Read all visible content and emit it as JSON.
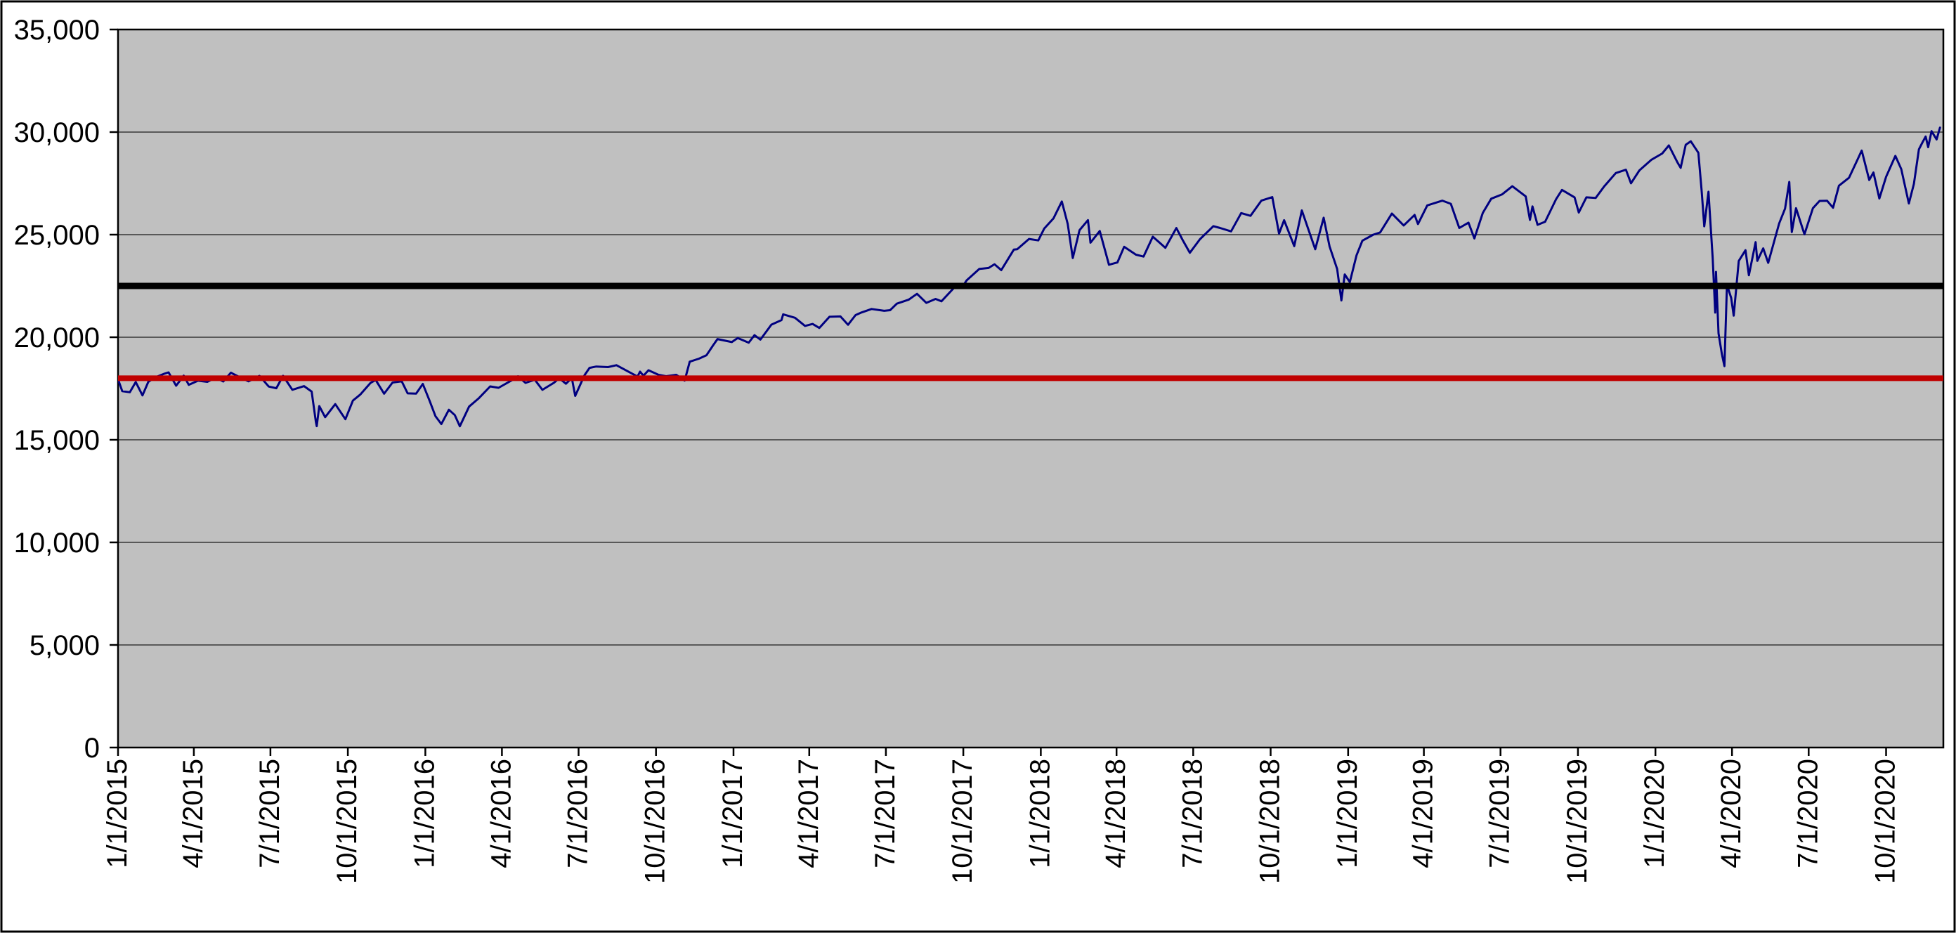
{
  "chart_data": {
    "type": "line",
    "title": "",
    "xlabel": "",
    "ylabel": "",
    "legend": null,
    "grid": "horizontal",
    "colors": {
      "page_background": "#ffffff",
      "plot_background": "#c0c0c0",
      "gridline": "#595959",
      "axis": "#000000",
      "series_line": "#000080",
      "reference_black": "#000000",
      "reference_red": "#c00000"
    },
    "y_axis": {
      "min": 0,
      "max": 35000,
      "tick_interval": 5000,
      "tick_labels": [
        "0",
        "5,000",
        "10,000",
        "15,000",
        "20,000",
        "25,000",
        "30,000",
        "35,000"
      ]
    },
    "x_axis": {
      "range_start": "1/1/2015",
      "range_end": "12/8/2020",
      "tick_labels": [
        "1/1/2015",
        "4/1/2015",
        "7/1/2015",
        "10/1/2015",
        "1/1/2016",
        "4/1/2016",
        "7/1/2016",
        "10/1/2016",
        "1/1/2017",
        "4/1/2017",
        "7/1/2017",
        "10/1/2017",
        "1/1/2018",
        "4/1/2018",
        "7/1/2018",
        "10/1/2018",
        "1/1/2019",
        "4/1/2019",
        "7/1/2019",
        "10/1/2019",
        "1/1/2020",
        "4/1/2020",
        "7/1/2020",
        "10/1/2020"
      ]
    },
    "reference_lines": [
      {
        "name": "reference-line-22500",
        "value": 22500,
        "color": "#000000",
        "width": 9
      },
      {
        "name": "reference-line-18000",
        "value": 18000,
        "color": "#c00000",
        "width": 8
      }
    ],
    "series": [
      {
        "name": "index-price-series",
        "color": "#000080",
        "width": 3,
        "points": [
          [
            "1/2/2015",
            17833
          ],
          [
            "1/6/2015",
            17371
          ],
          [
            "1/15/2015",
            17320
          ],
          [
            "1/22/2015",
            17814
          ],
          [
            "1/30/2015",
            17165
          ],
          [
            "2/6/2015",
            17824
          ],
          [
            "2/13/2015",
            18019
          ],
          [
            "2/25/2015",
            18224
          ],
          [
            "3/2/2015",
            18289
          ],
          [
            "3/11/2015",
            17636
          ],
          [
            "3/20/2015",
            18128
          ],
          [
            "3/26/2015",
            17678
          ],
          [
            "4/6/2015",
            17881
          ],
          [
            "4/17/2015",
            17826
          ],
          [
            "4/27/2015",
            18037
          ],
          [
            "5/6/2015",
            17842
          ],
          [
            "5/15/2015",
            18272
          ],
          [
            "5/26/2015",
            18041
          ],
          [
            "6/5/2015",
            17849
          ],
          [
            "6/18/2015",
            18116
          ],
          [
            "6/29/2015",
            17596
          ],
          [
            "7/8/2015",
            17515
          ],
          [
            "7/16/2015",
            18120
          ],
          [
            "7/27/2015",
            17440
          ],
          [
            "8/10/2015",
            17615
          ],
          [
            "8/19/2015",
            17349
          ],
          [
            "8/24/2015",
            15871
          ],
          [
            "8/25/2015",
            15666
          ],
          [
            "8/28/2015",
            16643
          ],
          [
            "9/4/2015",
            16102
          ],
          [
            "9/16/2015",
            16740
          ],
          [
            "9/28/2015",
            16002
          ],
          [
            "10/7/2015",
            16912
          ],
          [
            "10/16/2015",
            17216
          ],
          [
            "10/28/2015",
            17779
          ],
          [
            "11/3/2015",
            17918
          ],
          [
            "11/13/2015",
            17245
          ],
          [
            "11/23/2015",
            17792
          ],
          [
            "12/4/2015",
            17848
          ],
          [
            "12/11/2015",
            17265
          ],
          [
            "12/21/2015",
            17251
          ],
          [
            "12/29/2015",
            17721
          ],
          [
            "1/6/2016",
            16906
          ],
          [
            "1/13/2016",
            16151
          ],
          [
            "1/20/2016",
            15767
          ],
          [
            "1/29/2016",
            16466
          ],
          [
            "2/5/2016",
            16205
          ],
          [
            "2/11/2016",
            15660
          ],
          [
            "2/22/2016",
            16620
          ],
          [
            "3/4/2016",
            17007
          ],
          [
            "3/18/2016",
            17602
          ],
          [
            "3/28/2016",
            17535
          ],
          [
            "4/13/2016",
            17908
          ],
          [
            "4/20/2016",
            18096
          ],
          [
            "4/29/2016",
            17774
          ],
          [
            "5/10/2016",
            17928
          ],
          [
            "5/19/2016",
            17435
          ],
          [
            "6/2/2016",
            17789
          ],
          [
            "6/8/2016",
            18005
          ],
          [
            "6/16/2016",
            17733
          ],
          [
            "6/23/2016",
            18011
          ],
          [
            "6/27/2016",
            17140
          ],
          [
            "7/8/2016",
            18147
          ],
          [
            "7/14/2016",
            18506
          ],
          [
            "7/22/2016",
            18571
          ],
          [
            "8/5/2016",
            18543
          ],
          [
            "8/15/2016",
            18636
          ],
          [
            "8/26/2016",
            18395
          ],
          [
            "9/9/2016",
            18085
          ],
          [
            "9/12/2016",
            18325
          ],
          [
            "9/16/2016",
            18123
          ],
          [
            "9/22/2016",
            18392
          ],
          [
            "10/4/2016",
            18168
          ],
          [
            "10/13/2016",
            18099
          ],
          [
            "10/25/2016",
            18169
          ],
          [
            "11/4/2016",
            17888
          ],
          [
            "11/10/2016",
            18808
          ],
          [
            "11/21/2016",
            18956
          ],
          [
            "11/30/2016",
            19124
          ],
          [
            "12/8/2016",
            19615
          ],
          [
            "12/13/2016",
            19911
          ],
          [
            "12/30/2016",
            19763
          ],
          [
            "1/6/2017",
            19964
          ],
          [
            "1/19/2017",
            19732
          ],
          [
            "1/26/2017",
            20101
          ],
          [
            "2/2/2017",
            19884
          ],
          [
            "2/15/2017",
            20612
          ],
          [
            "2/27/2017",
            20837
          ],
          [
            "3/1/2017",
            21116
          ],
          [
            "3/15/2017",
            20950
          ],
          [
            "3/27/2017",
            20551
          ],
          [
            "4/5/2017",
            20648
          ],
          [
            "4/13/2017",
            20453
          ],
          [
            "4/25/2017",
            20996
          ],
          [
            "5/8/2017",
            21012
          ],
          [
            "5/17/2017",
            20607
          ],
          [
            "5/26/2017",
            21080
          ],
          [
            "6/2/2017",
            21206
          ],
          [
            "6/14/2017",
            21375
          ],
          [
            "6/29/2017",
            21287
          ],
          [
            "7/6/2017",
            21320
          ],
          [
            "7/14/2017",
            21638
          ],
          [
            "7/28/2017",
            21830
          ],
          [
            "8/7/2017",
            22118
          ],
          [
            "8/18/2017",
            21675
          ],
          [
            "8/29/2017",
            21865
          ],
          [
            "9/5/2017",
            21753
          ],
          [
            "9/20/2017",
            22413
          ],
          [
            "9/29/2017",
            22405
          ],
          [
            "10/5/2017",
            22775
          ],
          [
            "10/20/2017",
            23329
          ],
          [
            "10/31/2017",
            23377
          ],
          [
            "11/7/2017",
            23557
          ],
          [
            "11/15/2017",
            23271
          ],
          [
            "11/30/2017",
            24272
          ],
          [
            "12/4/2017",
            24290
          ],
          [
            "12/18/2017",
            24792
          ],
          [
            "12/29/2017",
            24719
          ],
          [
            "1/5/2018",
            25296
          ],
          [
            "1/16/2018",
            25792
          ],
          [
            "1/26/2018",
            26617
          ],
          [
            "2/2/2018",
            25521
          ],
          [
            "2/8/2018",
            23860
          ],
          [
            "2/16/2018",
            25219
          ],
          [
            "2/26/2018",
            25709
          ],
          [
            "3/1/2018",
            24608
          ],
          [
            "3/12/2018",
            25179
          ],
          [
            "3/23/2018",
            23533
          ],
          [
            "4/2/2018",
            23644
          ],
          [
            "4/10/2018",
            24408
          ],
          [
            "4/24/2018",
            24024
          ],
          [
            "5/3/2018",
            23930
          ],
          [
            "5/14/2018",
            24899
          ],
          [
            "5/29/2018",
            24361
          ],
          [
            "6/11/2018",
            25322
          ],
          [
            "6/19/2018",
            24700
          ],
          [
            "6/27/2018",
            24118
          ],
          [
            "7/9/2018",
            24776
          ],
          [
            "7/25/2018",
            25414
          ],
          [
            "8/2/2018",
            25327
          ],
          [
            "8/15/2018",
            25162
          ],
          [
            "8/27/2018",
            26050
          ],
          [
            "9/7/2018",
            25917
          ],
          [
            "9/20/2018",
            26657
          ],
          [
            "10/3/2018",
            26828
          ],
          [
            "10/11/2018",
            25053
          ],
          [
            "10/17/2018",
            25707
          ],
          [
            "10/29/2018",
            24443
          ],
          [
            "11/7/2018",
            26180
          ],
          [
            "11/23/2018",
            24286
          ],
          [
            "12/3/2018",
            25826
          ],
          [
            "12/10/2018",
            24423
          ],
          [
            "12/19/2018",
            23324
          ],
          [
            "12/24/2018",
            21792
          ],
          [
            "12/28/2018",
            23062
          ],
          [
            "1/3/2019",
            22686
          ],
          [
            "1/11/2019",
            23996
          ],
          [
            "1/18/2019",
            24706
          ],
          [
            "1/31/2019",
            24999
          ],
          [
            "2/8/2019",
            25106
          ],
          [
            "2/22/2019",
            26032
          ],
          [
            "3/8/2019",
            25450
          ],
          [
            "3/21/2019",
            25963
          ],
          [
            "3/25/2019",
            25517
          ],
          [
            "4/5/2019",
            26425
          ],
          [
            "4/23/2019",
            26656
          ],
          [
            "5/3/2019",
            26505
          ],
          [
            "5/13/2019",
            25325
          ],
          [
            "5/24/2019",
            25586
          ],
          [
            "5/31/2019",
            24815
          ],
          [
            "6/10/2019",
            26063
          ],
          [
            "6/20/2019",
            26753
          ],
          [
            "7/3/2019",
            26966
          ],
          [
            "7/15/2019",
            27359
          ],
          [
            "7/31/2019",
            26864
          ],
          [
            "8/5/2019",
            25718
          ],
          [
            "8/8/2019",
            26378
          ],
          [
            "8/14/2019",
            25479
          ],
          [
            "8/23/2019",
            25629
          ],
          [
            "9/5/2019",
            26728
          ],
          [
            "9/12/2019",
            27182
          ],
          [
            "9/27/2019",
            26820
          ],
          [
            "10/2/2019",
            26079
          ],
          [
            "10/11/2019",
            26817
          ],
          [
            "10/22/2019",
            26788
          ],
          [
            "11/1/2019",
            27347
          ],
          [
            "11/15/2019",
            28005
          ],
          [
            "11/27/2019",
            28164
          ],
          [
            "12/3/2019",
            27503
          ],
          [
            "12/13/2019",
            28135
          ],
          [
            "12/27/2019",
            28645
          ],
          [
            "1/9/2020",
            28957
          ],
          [
            "1/17/2020",
            29348
          ],
          [
            "1/27/2020",
            28536
          ],
          [
            "1/31/2020",
            28256
          ],
          [
            "2/6/2020",
            29380
          ],
          [
            "2/12/2020",
            29551
          ],
          [
            "2/21/2020",
            28992
          ],
          [
            "2/25/2020",
            27081
          ],
          [
            "2/28/2020",
            25409
          ],
          [
            "3/4/2020",
            27091
          ],
          [
            "3/9/2020",
            23851
          ],
          [
            "3/12/2020",
            21201
          ],
          [
            "3/13/2020",
            23186
          ],
          [
            "3/16/2020",
            20188
          ],
          [
            "3/20/2020",
            19174
          ],
          [
            "3/23/2020",
            18592
          ],
          [
            "3/26/2020",
            22552
          ],
          [
            "3/31/2020",
            21917
          ],
          [
            "4/3/2020",
            21053
          ],
          [
            "4/9/2020",
            23719
          ],
          [
            "4/17/2020",
            24242
          ],
          [
            "4/21/2020",
            23019
          ],
          [
            "4/29/2020",
            24634
          ],
          [
            "5/1/2020",
            23724
          ],
          [
            "5/8/2020",
            24331
          ],
          [
            "5/14/2020",
            23625
          ],
          [
            "5/27/2020",
            25548
          ],
          [
            "6/3/2020",
            26270
          ],
          [
            "6/8/2020",
            27572
          ],
          [
            "6/11/2020",
            25128
          ],
          [
            "6/16/2020",
            26290
          ],
          [
            "6/26/2020",
            25016
          ],
          [
            "7/6/2020",
            26287
          ],
          [
            "7/14/2020",
            26643
          ],
          [
            "7/23/2020",
            26652
          ],
          [
            "7/30/2020",
            26313
          ],
          [
            "8/6/2020",
            27387
          ],
          [
            "8/18/2020",
            27778
          ],
          [
            "8/28/2020",
            28654
          ],
          [
            "9/2/2020",
            29100
          ],
          [
            "9/11/2020",
            27666
          ],
          [
            "9/16/2020",
            28032
          ],
          [
            "9/23/2020",
            26763
          ],
          [
            "10/1/2020",
            27817
          ],
          [
            "10/12/2020",
            28838
          ],
          [
            "10/19/2020",
            28195
          ],
          [
            "10/28/2020",
            26520
          ],
          [
            "11/3/2020",
            27480
          ],
          [
            "11/9/2020",
            29158
          ],
          [
            "11/13/2020",
            29480
          ],
          [
            "11/17/2020",
            29783
          ],
          [
            "11/20/2020",
            29263
          ],
          [
            "11/24/2020",
            30046
          ],
          [
            "11/30/2020",
            29639
          ],
          [
            "12/4/2020",
            30218
          ]
        ]
      }
    ]
  }
}
